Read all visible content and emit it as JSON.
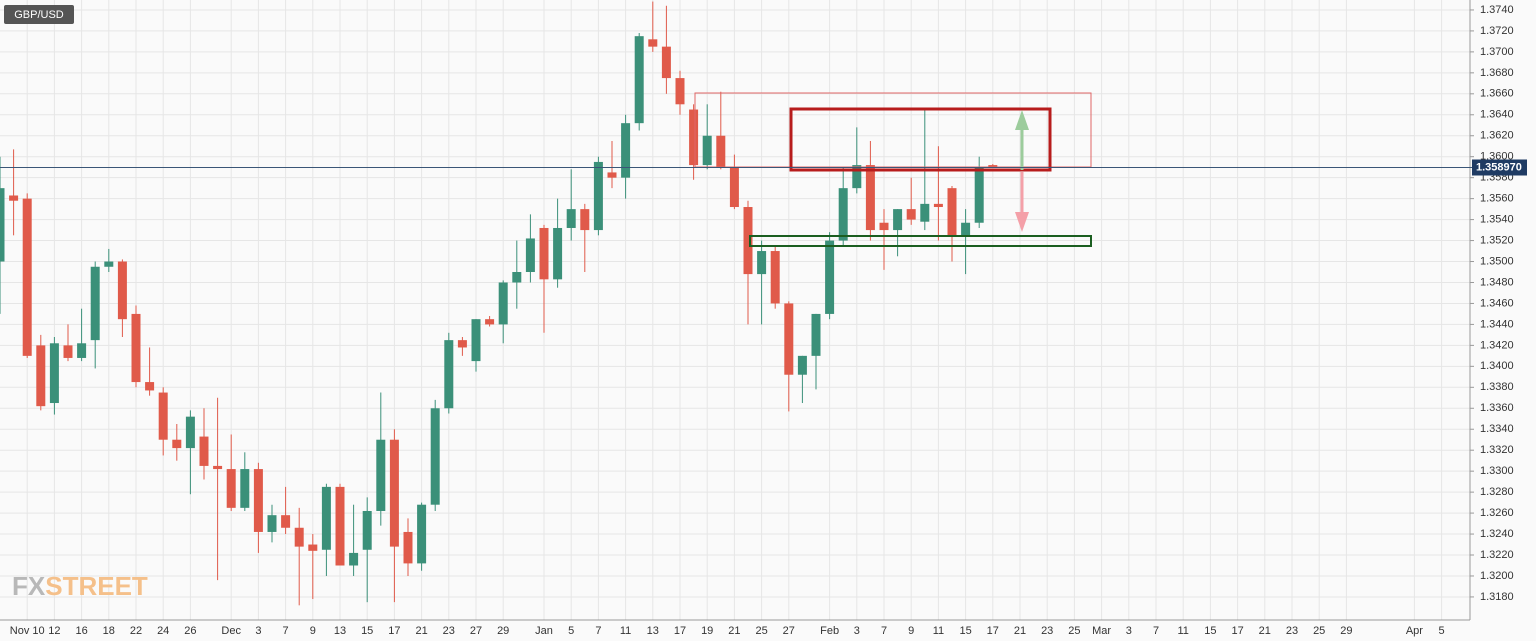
{
  "chart_data": {
    "type": "candlestick",
    "symbol": "GBP/USD",
    "watermark": [
      "FX",
      "STREET"
    ],
    "up_color": "#3b9079",
    "down_color": "#e05a4a",
    "categories": [
      null,
      null,
      "Nov 10",
      null,
      "12",
      null,
      "16",
      null,
      "18",
      null,
      "22",
      null,
      "24",
      null,
      "26",
      null,
      null,
      "Dec",
      null,
      "3",
      null,
      "7",
      null,
      "9",
      null,
      "13",
      null,
      "15",
      null,
      "17",
      null,
      "21",
      null,
      "23",
      null,
      "27",
      null,
      "29",
      null,
      null,
      "Jan",
      null,
      "5",
      null,
      "7",
      null,
      "11",
      null,
      "13",
      null,
      "17",
      null,
      "19",
      null,
      "21",
      null,
      "25",
      null,
      "27",
      null,
      null,
      "Feb",
      null,
      "3",
      null,
      "7",
      null,
      "9",
      null,
      "11",
      null,
      "15",
      null,
      "17",
      null,
      "21",
      null,
      "23",
      null,
      "25",
      null,
      "Mar",
      null,
      "3",
      null,
      "7",
      null,
      "11",
      null,
      "15",
      null,
      "17",
      null,
      "21",
      null,
      "23",
      null,
      "25",
      null,
      "29",
      null,
      null,
      null,
      null,
      "Apr",
      null,
      "5"
    ],
    "open": [
      1.35,
      1.3563,
      1.356,
      1.342,
      1.3365,
      1.342,
      1.3408,
      1.3425,
      1.3495,
      1.35,
      1.345,
      1.3385,
      1.3375,
      1.333,
      1.3322,
      1.3333,
      1.3305,
      1.3302,
      1.3265,
      1.3302,
      1.3242,
      1.3258,
      1.3246,
      1.323,
      1.3225,
      1.3285,
      1.321,
      1.3225,
      1.3262,
      1.333,
      1.3242,
      1.3212,
      1.3268,
      1.336,
      1.3425,
      1.3405,
      1.3445,
      1.344,
      1.348,
      1.349,
      1.3532,
      1.3483,
      1.3532,
      1.355,
      1.353,
      1.3585,
      1.358,
      1.3632,
      1.3712,
      1.3705,
      1.3675,
      1.3645,
      1.3592,
      1.362,
      1.359,
      1.3552,
      1.3488,
      1.351,
      1.346,
      1.3392,
      1.341,
      1.345,
      1.352,
      1.357,
      1.3592,
      1.3537,
      1.353,
      1.355,
      1.3538,
      1.3555,
      1.357,
      1.3525,
      1.3537,
      1.3592,
      null,
      null,
      null,
      null,
      null,
      null,
      null,
      null,
      null,
      null,
      null,
      null,
      null,
      null,
      null,
      null,
      null,
      null,
      null,
      null,
      null,
      null,
      null,
      null,
      null,
      null,
      null,
      null,
      null,
      null,
      null,
      null,
      null
    ],
    "high": [
      1.36,
      1.3607,
      1.3565,
      1.343,
      1.3428,
      1.344,
      1.3455,
      1.35,
      1.3512,
      1.3502,
      1.3458,
      1.3418,
      1.338,
      1.3345,
      1.3358,
      1.336,
      1.337,
      1.3335,
      1.3318,
      1.3308,
      1.3268,
      1.3285,
      1.3265,
      1.324,
      1.3288,
      1.3288,
      1.3268,
      1.3275,
      1.3375,
      1.334,
      1.3255,
      1.327,
      1.3368,
      1.3432,
      1.3428,
      1.3445,
      1.3448,
      1.3482,
      1.352,
      1.3545,
      1.3535,
      1.356,
      1.3588,
      1.3555,
      1.36,
      1.3615,
      1.364,
      1.3718,
      1.3748,
      1.3744,
      1.3682,
      1.365,
      1.365,
      1.3662,
      1.3602,
      1.3558,
      1.352,
      1.3515,
      1.3462,
      1.341,
      1.345,
      1.3528,
      1.359,
      1.3628,
      1.3615,
      1.355,
      1.355,
      1.358,
      1.3645,
      1.361,
      1.3572,
      1.355,
      1.36,
      1.3593,
      null,
      null,
      null,
      null,
      null,
      null,
      null,
      null,
      null,
      null,
      null,
      null,
      null,
      null,
      null,
      null,
      null,
      null,
      null,
      null,
      null,
      null,
      null,
      null,
      null,
      null,
      null,
      null,
      null,
      null,
      null,
      null,
      null
    ],
    "low": [
      1.345,
      1.3525,
      1.3408,
      1.3358,
      1.3354,
      1.3405,
      1.3405,
      1.3398,
      1.349,
      1.3428,
      1.338,
      1.3372,
      1.3315,
      1.331,
      1.3278,
      1.3292,
      1.3196,
      1.3262,
      1.3262,
      1.3222,
      1.3232,
      1.324,
      1.3172,
      1.3178,
      1.32,
      1.321,
      1.32,
      1.3175,
      1.3248,
      1.3175,
      1.32,
      1.3205,
      1.3262,
      1.3355,
      1.341,
      1.3395,
      1.3438,
      1.3422,
      1.3455,
      1.348,
      1.3432,
      1.3475,
      1.352,
      1.349,
      1.3525,
      1.357,
      1.356,
      1.3625,
      1.37,
      1.366,
      1.364,
      1.3578,
      1.3588,
      1.3588,
      1.355,
      1.344,
      1.344,
      1.3455,
      1.3357,
      1.3365,
      1.3378,
      1.3445,
      1.3515,
      1.3565,
      1.352,
      1.3492,
      1.3505,
      1.3535,
      1.353,
      1.352,
      1.35,
      1.3488,
      1.3532,
      1.359,
      null,
      null,
      null,
      null,
      null,
      null,
      null,
      null,
      null,
      null,
      null,
      null,
      null,
      null,
      null,
      null,
      null,
      null,
      null,
      null,
      null,
      null,
      null,
      null,
      null,
      null,
      null,
      null,
      null,
      null,
      null,
      null,
      null
    ],
    "close": [
      1.357,
      1.3558,
      1.341,
      1.3362,
      1.3422,
      1.3408,
      1.3422,
      1.3495,
      1.35,
      1.3445,
      1.3385,
      1.3377,
      1.333,
      1.3322,
      1.3352,
      1.3305,
      1.3302,
      1.3265,
      1.3302,
      1.3242,
      1.3258,
      1.3246,
      1.3228,
      1.3224,
      1.3285,
      1.321,
      1.3222,
      1.3262,
      1.333,
      1.3228,
      1.3212,
      1.3268,
      1.336,
      1.3425,
      1.3418,
      1.3445,
      1.344,
      1.348,
      1.349,
      1.3522,
      1.3483,
      1.3532,
      1.355,
      1.353,
      1.3595,
      1.358,
      1.3632,
      1.3715,
      1.3705,
      1.3675,
      1.365,
      1.3592,
      1.362,
      1.359,
      1.3552,
      1.3488,
      1.351,
      1.346,
      1.3392,
      1.341,
      1.345,
      1.352,
      1.357,
      1.3592,
      1.353,
      1.353,
      1.355,
      1.354,
      1.3555,
      1.3552,
      1.3525,
      1.3537,
      1.359,
      1.359,
      null,
      null,
      null,
      null,
      null,
      null,
      null,
      null,
      null,
      null,
      null,
      null,
      null,
      null,
      null,
      null,
      null,
      null,
      null,
      null,
      null,
      null,
      null,
      null,
      null,
      null,
      null,
      null,
      null,
      null,
      null,
      null,
      null
    ],
    "ylim": [
      1.3158,
      1.37495
    ],
    "yticks": [
      {
        "value": 1.318,
        "label": "1.3180"
      },
      {
        "value": 1.32,
        "label": "1.3200"
      },
      {
        "value": 1.322,
        "label": "1.3220"
      },
      {
        "value": 1.324,
        "label": "1.3240"
      },
      {
        "value": 1.326,
        "label": "1.3260"
      },
      {
        "value": 1.328,
        "label": "1.3280"
      },
      {
        "value": 1.33,
        "label": "1.3300"
      },
      {
        "value": 1.332,
        "label": "1.3320"
      },
      {
        "value": 1.334,
        "label": "1.3340"
      },
      {
        "value": 1.336,
        "label": "1.3360"
      },
      {
        "value": 1.338,
        "label": "1.3380"
      },
      {
        "value": 1.34,
        "label": "1.3400"
      },
      {
        "value": 1.342,
        "label": "1.3420"
      },
      {
        "value": 1.344,
        "label": "1.3440"
      },
      {
        "value": 1.346,
        "label": "1.3460"
      },
      {
        "value": 1.348,
        "label": "1.3480"
      },
      {
        "value": 1.35,
        "label": "1.3500"
      },
      {
        "value": 1.352,
        "label": "1.3520"
      },
      {
        "value": 1.354,
        "label": "1.3540"
      },
      {
        "value": 1.356,
        "label": "1.3560"
      },
      {
        "value": 1.358,
        "label": "1.3580"
      },
      {
        "value": 1.36,
        "label": "1.3600"
      },
      {
        "value": 1.362,
        "label": "1.3620"
      },
      {
        "value": 1.364,
        "label": "1.3640"
      },
      {
        "value": 1.366,
        "label": "1.3660"
      },
      {
        "value": 1.368,
        "label": "1.3680"
      },
      {
        "value": 1.37,
        "label": "1.3700"
      },
      {
        "value": 1.372,
        "label": "1.3720"
      },
      {
        "value": 1.374,
        "label": "1.3740"
      }
    ],
    "last_price": {
      "value": 1.35897,
      "label": "1.358970"
    },
    "grid": true
  }
}
